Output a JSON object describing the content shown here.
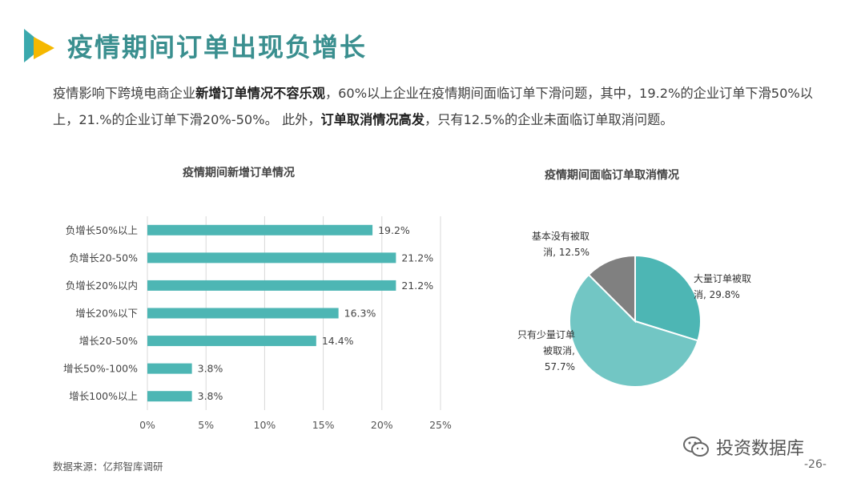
{
  "header": {
    "title": "疫情期间订单出现负增长",
    "logo_icon": "play-triangle-icon",
    "accent_color": "#3aa9ad",
    "logo_secondary_color": "#f5b800"
  },
  "intro": {
    "p1": "疫情影响下跨境电商企业",
    "b1": "新增订单情况不容乐观",
    "p2": "，60%以上企业在疫情期间面临订单下滑问题，其中，19.2%的企业订单下滑50%以上，21.%的企业订单下滑20%-50%。 此外，",
    "b2": "订单取消情况高发",
    "p3": "，只有12.5%的企业未面临订单取消问题。"
  },
  "chart_data": [
    {
      "type": "bar",
      "orientation": "horizontal",
      "title": "疫情期间新增订单情况",
      "categories": [
        "负增长50%以上",
        "负增长20-50%",
        "负增长20%以内",
        "增长20%以下",
        "增长20-50%",
        "增长50%-100%",
        "增长100%以上"
      ],
      "values": [
        19.2,
        21.2,
        21.2,
        16.3,
        14.4,
        3.8,
        3.8
      ],
      "value_labels": [
        "19.2%",
        "21.2%",
        "21.2%",
        "16.3%",
        "14.4%",
        "3.8%",
        "3.8%"
      ],
      "xlim": [
        0,
        25
      ],
      "x_ticks": [
        "0%",
        "5%",
        "10%",
        "15%",
        "20%",
        "25%"
      ],
      "grid": true,
      "color": "#4db6b4"
    },
    {
      "type": "pie",
      "title": "疫情期间面临订单取消情况",
      "slices": [
        {
          "label_line1": "大量订单被取",
          "label_line2": "消, 29.8%",
          "label_line3": "",
          "value": 29.8,
          "color": "#4db6b4"
        },
        {
          "label_line1": "只有少量订单",
          "label_line2": "被取消,",
          "label_line3": "57.7%",
          "value": 57.7,
          "color": "#72c6c4"
        },
        {
          "label_line1": "基本没有被取",
          "label_line2": "消, 12.5%",
          "label_line3": "",
          "value": 12.5,
          "color": "#808080"
        }
      ]
    }
  ],
  "footer": {
    "source": "数据来源：亿邦智库调研",
    "brand": "投资数据库",
    "brand_icon": "wechat-icon",
    "page_number": "-26-"
  }
}
